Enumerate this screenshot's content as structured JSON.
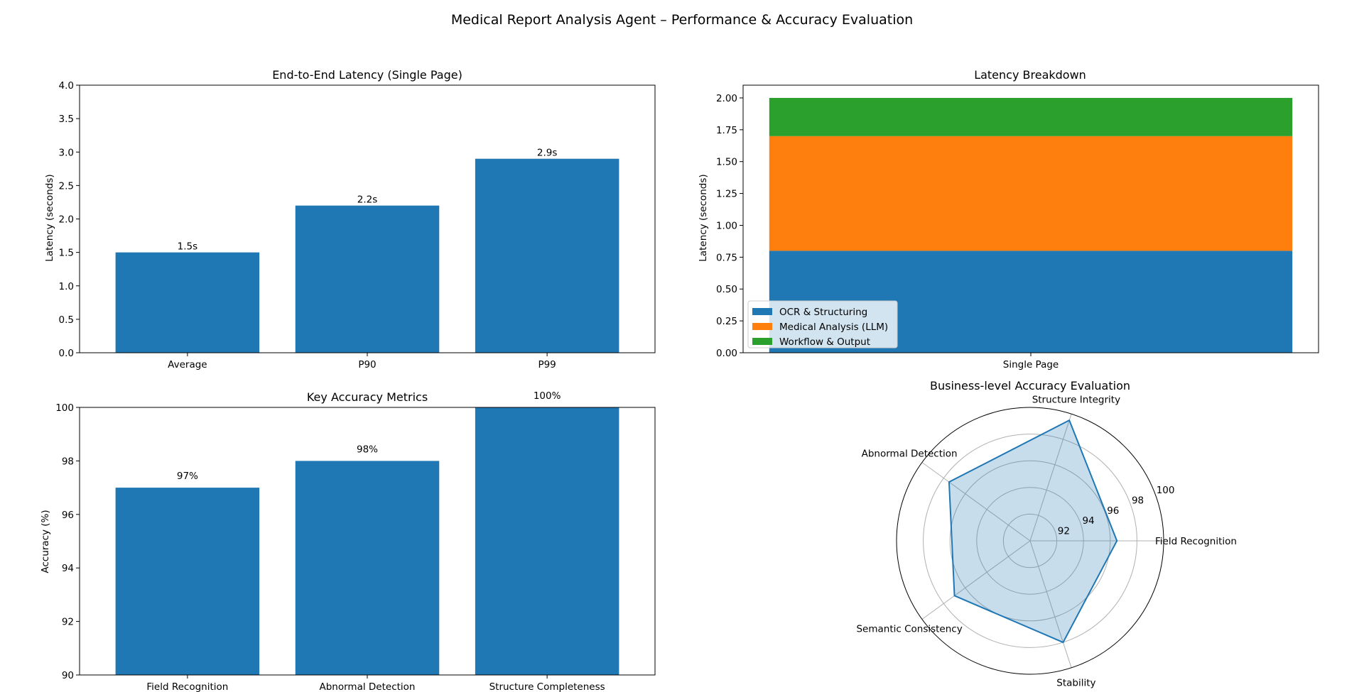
{
  "figure": {
    "title": "Medical Report Analysis Agent – Performance & Accuracy Evaluation"
  },
  "chart_data": [
    {
      "id": "latency",
      "type": "bar",
      "title": "End-to-End Latency (Single Page)",
      "xlabel": "",
      "ylabel": "Latency (seconds)",
      "categories": [
        "Average",
        "P90",
        "P99"
      ],
      "values": [
        1.5,
        2.2,
        2.9
      ],
      "value_labels": [
        "1.5s",
        "2.2s",
        "2.9s"
      ],
      "ylim": [
        0,
        4.0
      ],
      "yticks": [
        "0.0",
        "0.5",
        "1.0",
        "1.5",
        "2.0",
        "2.5",
        "3.0",
        "3.5",
        "4.0"
      ],
      "color": "#1f77b4",
      "grid": false
    },
    {
      "id": "breakdown",
      "type": "bar",
      "stacked": true,
      "title": "Latency Breakdown",
      "xlabel": "",
      "ylabel": "Latency (seconds)",
      "categories": [
        "Single Page"
      ],
      "series": [
        {
          "name": "OCR & Structuring",
          "values": [
            0.8
          ],
          "color": "#1f77b4"
        },
        {
          "name": "Medical Analysis (LLM)",
          "values": [
            0.9
          ],
          "color": "#ff7f0e"
        },
        {
          "name": "Workflow & Output",
          "values": [
            0.3
          ],
          "color": "#2ca02c"
        }
      ],
      "ylim": [
        0,
        2.1
      ],
      "yticks": [
        "0.00",
        "0.25",
        "0.50",
        "0.75",
        "1.00",
        "1.25",
        "1.50",
        "1.75",
        "2.00"
      ],
      "legend": "lower-left",
      "grid": false
    },
    {
      "id": "accuracy",
      "type": "bar",
      "title": "Key Accuracy Metrics",
      "xlabel": "",
      "ylabel": "Accuracy (%)",
      "categories": [
        "Field Recognition",
        "Abnormal Detection",
        "Structure Completeness"
      ],
      "values": [
        97,
        98,
        100
      ],
      "value_labels": [
        "97%",
        "98%",
        "100%"
      ],
      "ylim": [
        90,
        100
      ],
      "yticks": [
        "90",
        "92",
        "94",
        "96",
        "98",
        "100"
      ],
      "color": "#1f77b4",
      "grid": false
    },
    {
      "id": "radar",
      "type": "radar",
      "title": "Business-level Accuracy Evaluation",
      "categories": [
        "Field Recognition",
        "Structure Integrity",
        "Abnormal Detection",
        "Semantic Consistency",
        "Stability"
      ],
      "values": [
        96.5,
        99.5,
        97.5,
        97.0,
        98.0
      ],
      "rlim": [
        90,
        100
      ],
      "rticks": [
        "92",
        "94",
        "96",
        "98",
        "100"
      ],
      "color": "#1f77b4",
      "grid": true
    }
  ]
}
